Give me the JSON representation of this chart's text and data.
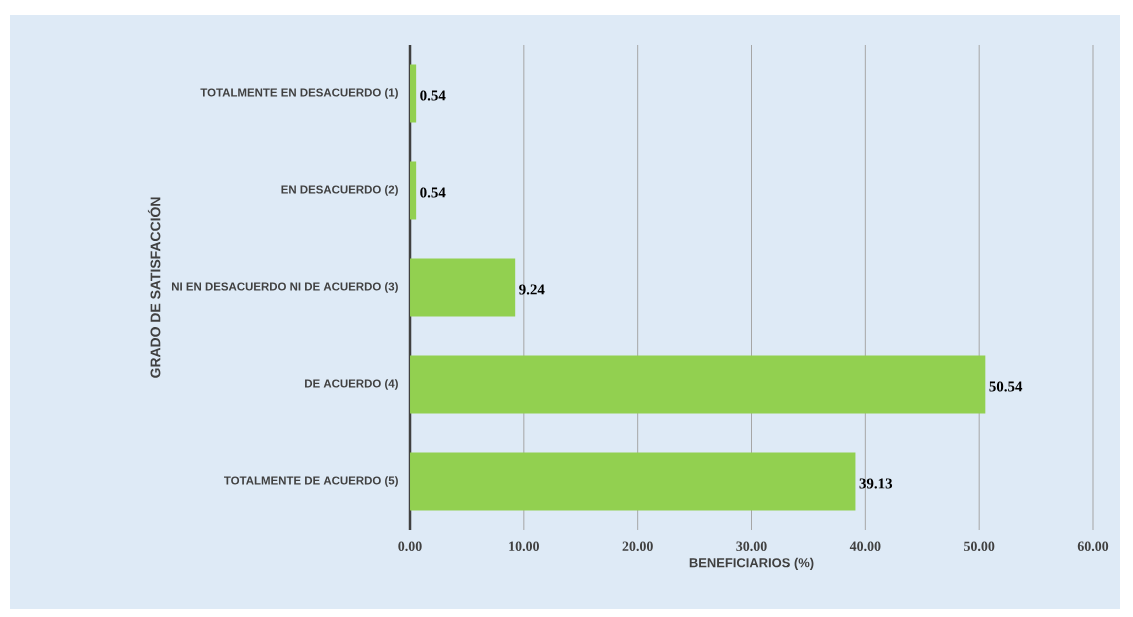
{
  "chart_data": {
    "type": "bar",
    "orientation": "horizontal",
    "xlabel": "BENEFICIARIOS (%)",
    "ylabel": "GRADO DE SATISFACCIÓN",
    "categories": [
      "TOTALMENTE EN DESACUERDO (1)",
      "EN DESACUERDO (2)",
      "NI EN DESACUERDO NI DE ACUERDO (3)",
      "DE ACUERDO (4)",
      "TOTALMENTE DE ACUERDO (5)"
    ],
    "values": [
      0.54,
      0.54,
      9.24,
      50.54,
      39.13
    ],
    "color": "#92d050",
    "data_labels": true,
    "xlim": [
      0,
      60
    ],
    "xticks": [
      {
        "value": 0,
        "label": "0.00"
      },
      {
        "value": 10,
        "label": "10.00"
      },
      {
        "value": 20,
        "label": "20.00"
      },
      {
        "value": 30,
        "label": "30.00"
      },
      {
        "value": 40,
        "label": "40.00"
      },
      {
        "value": 50,
        "label": "50.00"
      },
      {
        "value": 60,
        "label": "60.00"
      }
    ],
    "grid": "x"
  }
}
